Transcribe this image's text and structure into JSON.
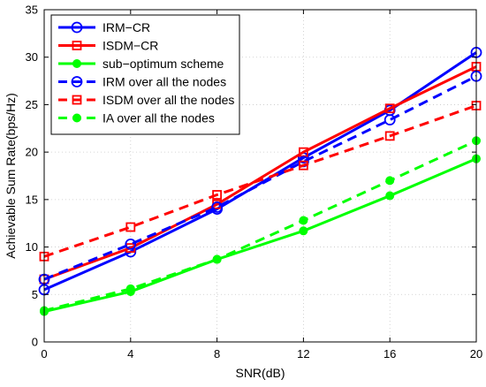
{
  "chart_data": {
    "type": "line",
    "xlabel": "SNR(dB)",
    "ylabel": "Achievable Sum Rate(bps/Hz)",
    "xlim": [
      0,
      20
    ],
    "ylim": [
      0,
      35
    ],
    "xticks": [
      0,
      4,
      8,
      12,
      16,
      20
    ],
    "yticks": [
      0,
      5,
      10,
      15,
      20,
      25,
      30,
      35
    ],
    "legend_position": "top-left",
    "x": [
      0,
      4,
      8,
      12,
      16,
      20
    ],
    "series": [
      {
        "name": "IRM−CR",
        "color": "#0000ff",
        "dash": "solid",
        "marker": "circle",
        "values": [
          5.5,
          9.5,
          14.0,
          19.4,
          24.4,
          30.5
        ]
      },
      {
        "name": "ISDM−CR",
        "color": "#ff0000",
        "dash": "solid",
        "marker": "square",
        "values": [
          6.6,
          9.9,
          14.5,
          20.0,
          24.6,
          29.0
        ]
      },
      {
        "name": "sub−optimum scheme",
        "color": "#00ff00",
        "dash": "solid",
        "marker": "dot",
        "values": [
          3.2,
          5.3,
          8.7,
          11.7,
          15.4,
          19.3
        ]
      },
      {
        "name": "IRM over all the nodes",
        "color": "#0000ff",
        "dash": "dashed",
        "marker": "circle",
        "values": [
          6.6,
          10.3,
          14.2,
          19.0,
          23.4,
          28.0
        ]
      },
      {
        "name": "ISDM over all the nodes",
        "color": "#ff0000",
        "dash": "dashed",
        "marker": "square",
        "values": [
          9.0,
          12.1,
          15.5,
          18.6,
          21.7,
          24.9
        ]
      },
      {
        "name": "IA over all the nodes",
        "color": "#00ff00",
        "dash": "dashed",
        "marker": "dot",
        "values": [
          3.3,
          5.6,
          8.7,
          12.8,
          17.0,
          21.2
        ]
      }
    ]
  }
}
